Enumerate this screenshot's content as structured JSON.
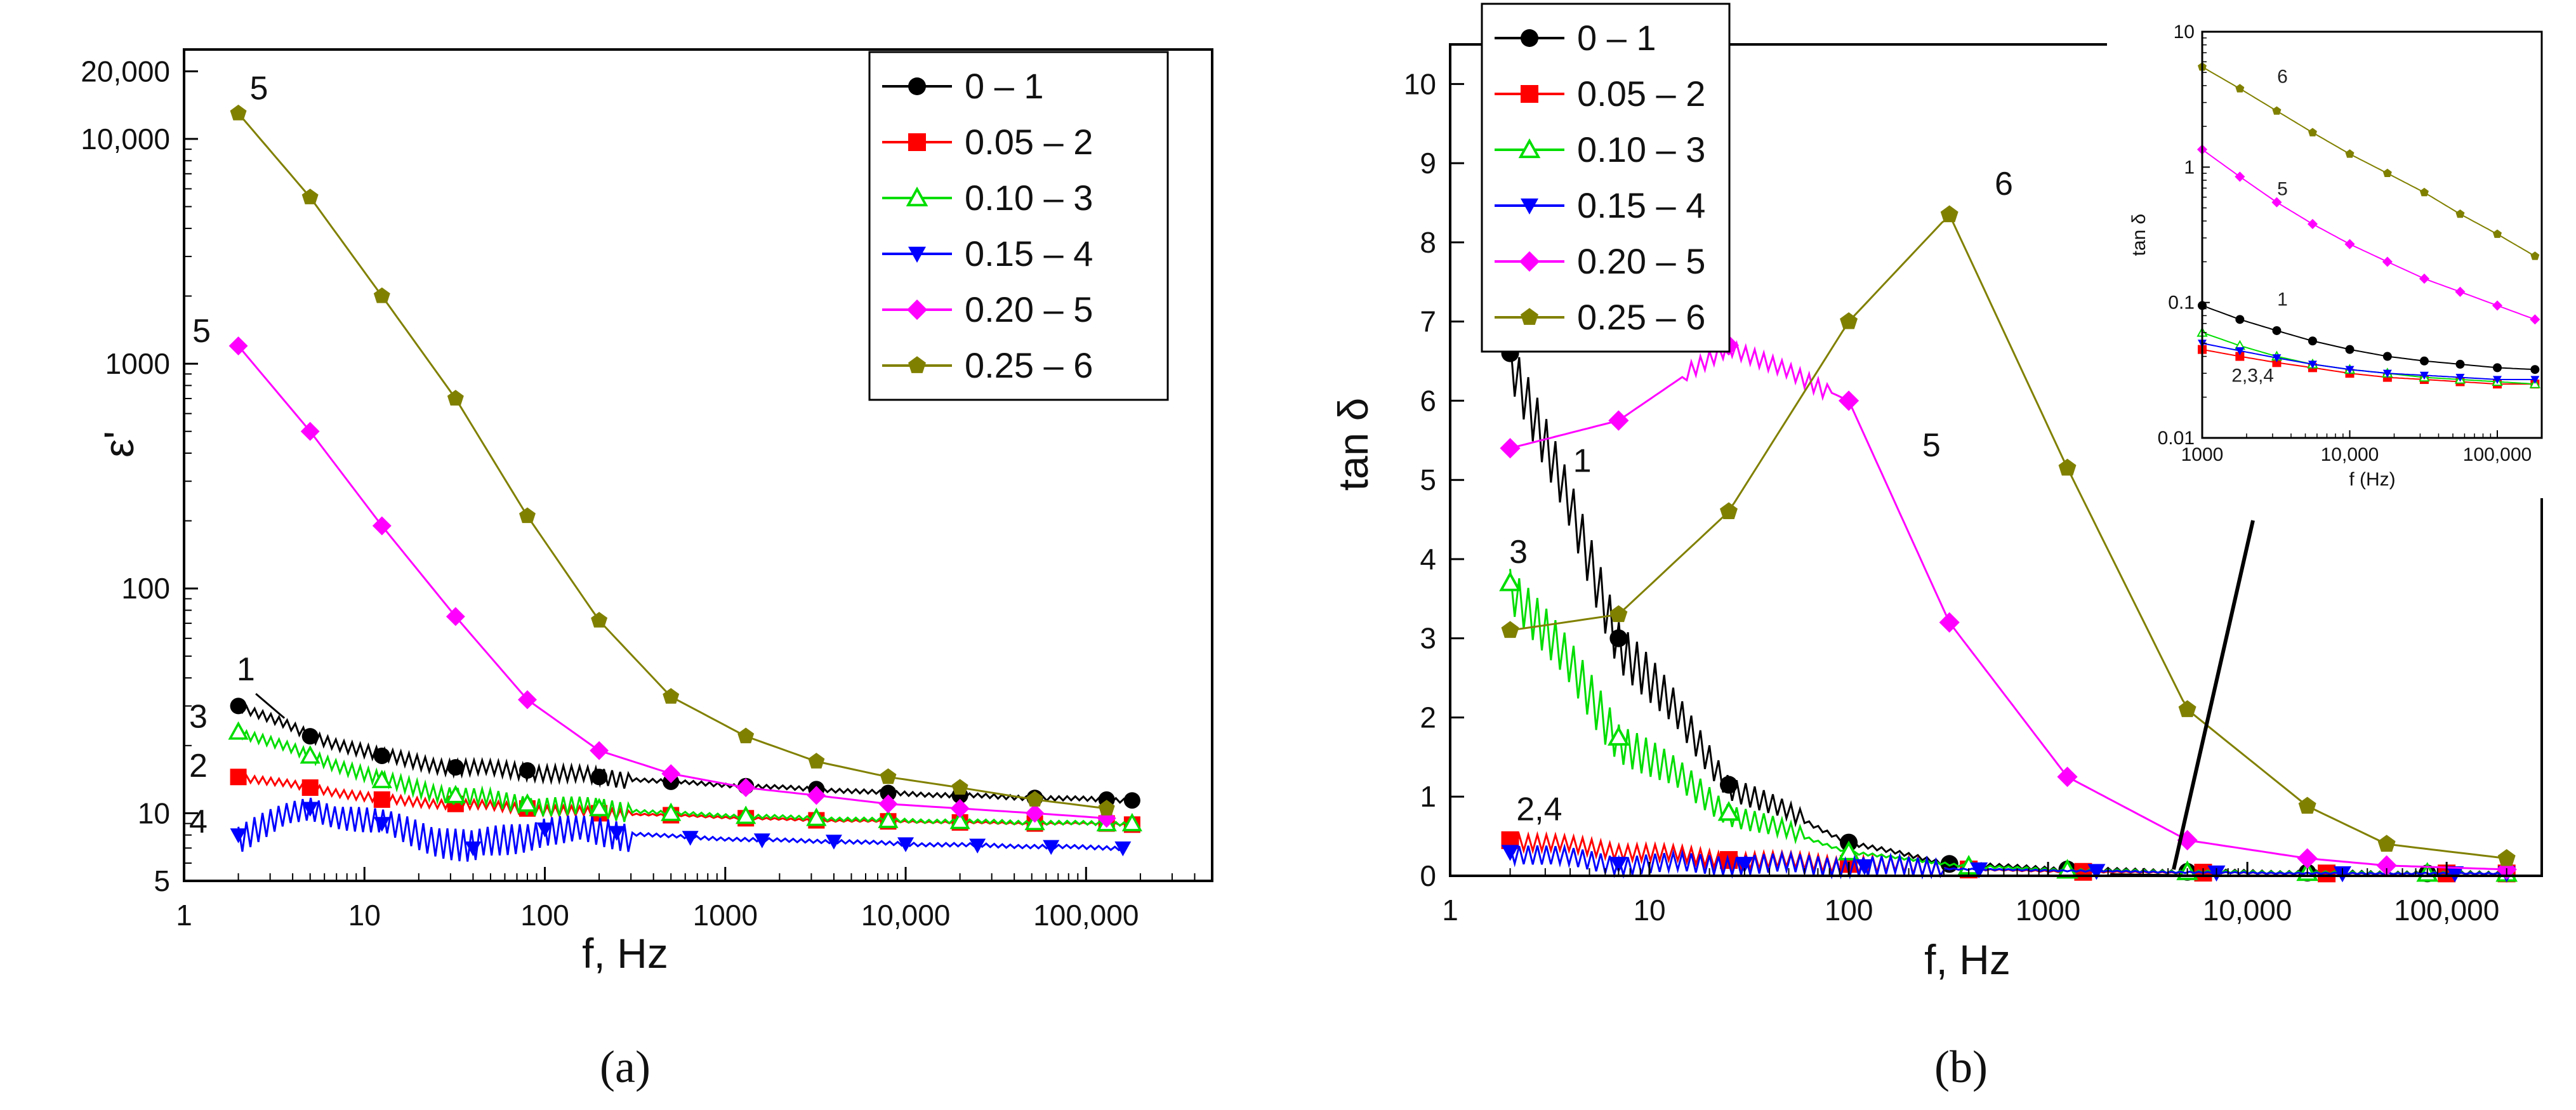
{
  "panels": {
    "a": {
      "caption": "(a)",
      "ylabel": "ε'",
      "xlabel": "f, Hz",
      "xticks": [
        {
          "v": 1,
          "label": "1"
        },
        {
          "v": 10,
          "label": "10"
        },
        {
          "v": 100,
          "label": "100"
        },
        {
          "v": 1000,
          "label": "1000"
        },
        {
          "v": 10000,
          "label": "10,000"
        },
        {
          "v": 100000,
          "label": "100,000"
        }
      ],
      "yticks": [
        {
          "v": 5,
          "label": "5"
        },
        {
          "v": 10,
          "label": "10"
        },
        {
          "v": 100,
          "label": "100"
        },
        {
          "v": 1000,
          "label": "1000"
        },
        {
          "v": 10000,
          "label": "10,000"
        },
        {
          "v": 20000,
          "label": "20,000"
        }
      ],
      "annotations": [
        {
          "text": "5",
          "x": 2.6,
          "y": 15000
        },
        {
          "text": "5",
          "x": 1.25,
          "y": 1250
        },
        {
          "text": "1",
          "x": 2.2,
          "y": 39
        },
        {
          "text": "3",
          "x": 1.2,
          "y": 24
        },
        {
          "text": "2",
          "x": 1.2,
          "y": 14.5
        },
        {
          "text": "4",
          "x": 1.2,
          "y": 8.2
        }
      ]
    },
    "b": {
      "caption": "(b)",
      "ylabel": "tan δ",
      "xlabel": "f, Hz",
      "xticks": [
        {
          "v": 1,
          "label": "1"
        },
        {
          "v": 10,
          "label": "10"
        },
        {
          "v": 100,
          "label": "100"
        },
        {
          "v": 1000,
          "label": "1000"
        },
        {
          "v": 10000,
          "label": "10,000"
        },
        {
          "v": 100000,
          "label": "100,000"
        }
      ],
      "yticks": [
        {
          "v": 0,
          "label": "0"
        },
        {
          "v": 1,
          "label": "1"
        },
        {
          "v": 2,
          "label": "2"
        },
        {
          "v": 3,
          "label": "3"
        },
        {
          "v": 4,
          "label": "4"
        },
        {
          "v": 5,
          "label": "5"
        },
        {
          "v": 6,
          "label": "6"
        },
        {
          "v": 7,
          "label": "7"
        },
        {
          "v": 8,
          "label": "8"
        },
        {
          "v": 9,
          "label": "9"
        },
        {
          "v": 10,
          "label": "10"
        }
      ],
      "annotations": [
        {
          "text": "1",
          "x": 4.6,
          "y": 5.1
        },
        {
          "text": "3",
          "x": 2.2,
          "y": 3.95
        },
        {
          "text": "2,4",
          "x": 2.8,
          "y": 0.7
        },
        {
          "text": "5",
          "x": 260,
          "y": 5.3
        },
        {
          "text": "6",
          "x": 600,
          "y": 8.6
        }
      ],
      "inset": {
        "ylabel": "tan δ",
        "xlabel": "f (Hz)",
        "xticks": [
          {
            "v": 1000,
            "label": "1000"
          },
          {
            "v": 10000,
            "label": "10,000"
          },
          {
            "v": 100000,
            "label": "100,000"
          }
        ],
        "yticks": [
          {
            "v": 0.01,
            "label": "0.01"
          },
          {
            "v": 0.1,
            "label": "0.1"
          },
          {
            "v": 1,
            "label": "1"
          },
          {
            "v": 10,
            "label": "10"
          }
        ],
        "annotations": [
          {
            "text": "6",
            "x": 3500,
            "y": 4.2
          },
          {
            "text": "5",
            "x": 3500,
            "y": 0.62
          },
          {
            "text": "1",
            "x": 3500,
            "y": 0.095
          },
          {
            "text": "2,3,4",
            "x": 2200,
            "y": 0.026
          }
        ]
      }
    }
  },
  "legend": [
    {
      "label": "0 – 1",
      "color": "#000000",
      "marker": "circle"
    },
    {
      "label": "0.05 – 2",
      "color": "#ff0000",
      "marker": "square"
    },
    {
      "label": "0.10 – 3",
      "color": "#00dd00",
      "marker": "triangle-open"
    },
    {
      "label": "0.15 – 4",
      "color": "#0000ff",
      "marker": "triangle-down"
    },
    {
      "label": "0.20 – 5",
      "color": "#ff00ff",
      "marker": "diamond"
    },
    {
      "label": "0.25 – 6",
      "color": "#808000",
      "marker": "pentagon"
    }
  ],
  "chart_data": [
    {
      "type": "line",
      "title": "",
      "xlabel": "f, Hz",
      "ylabel": "ε'",
      "xscale": "log",
      "yscale": "log",
      "xlim": [
        1,
        500000
      ],
      "ylim": [
        5,
        25000
      ],
      "legend": "top-right",
      "grid": false,
      "series": [
        {
          "name": "0 – 1",
          "x": [
            2,
            5,
            12.5,
            32,
            80,
            200,
            500,
            1300,
            3200,
            8000,
            20000,
            52000,
            130000,
            180000
          ],
          "y": [
            30,
            22,
            18,
            16,
            15.5,
            14.5,
            13.8,
            13.2,
            12.8,
            12.3,
            12,
            11.7,
            11.5,
            11.4
          ]
        },
        {
          "name": "0.05 – 2",
          "x": [
            2,
            5,
            12.5,
            32,
            80,
            200,
            500,
            1300,
            3200,
            8000,
            20000,
            52000,
            130000,
            180000
          ],
          "y": [
            14.5,
            13,
            11.5,
            11,
            10.5,
            10,
            9.8,
            9.5,
            9.3,
            9.2,
            9.1,
            9,
            9,
            8.9
          ]
        },
        {
          "name": "0.10 – 3",
          "x": [
            2,
            5,
            12.5,
            32,
            80,
            200,
            500,
            1300,
            3200,
            8000,
            20000,
            52000,
            130000,
            180000
          ],
          "y": [
            23,
            18,
            14,
            12,
            11,
            10.5,
            10,
            9.7,
            9.5,
            9.3,
            9.2,
            9.1,
            9,
            9
          ]
        },
        {
          "name": "0.15 – 4",
          "x": [
            2,
            5,
            12.5,
            40,
            100,
            250,
            640,
            1600,
            4000,
            10000,
            25000,
            64000,
            160000
          ],
          "y": [
            8,
            10.5,
            9,
            7,
            8.5,
            8.2,
            7.8,
            7.6,
            7.5,
            7.3,
            7.2,
            7.1,
            7
          ]
        },
        {
          "name": "0.20 – 5",
          "x": [
            2,
            5,
            12.5,
            32,
            80,
            200,
            500,
            1300,
            3200,
            8000,
            20000,
            52000,
            130000
          ],
          "y": [
            1200,
            500,
            190,
            75,
            32,
            19,
            15,
            13,
            12,
            11,
            10.5,
            10,
            9.5
          ]
        },
        {
          "name": "0.25 – 6",
          "x": [
            2,
            5,
            12.5,
            32,
            80,
            200,
            500,
            1300,
            3200,
            8000,
            20000,
            52000,
            130000
          ],
          "y": [
            13000,
            5500,
            2000,
            700,
            210,
            72,
            33,
            22,
            17,
            14.5,
            13,
            11.5,
            10.5
          ]
        }
      ]
    },
    {
      "type": "line",
      "title": "",
      "xlabel": "f, Hz",
      "ylabel": "tan δ",
      "xscale": "log",
      "yscale": "linear",
      "xlim": [
        1,
        300000
      ],
      "ylim": [
        0,
        10.5
      ],
      "legend": "top-left",
      "grid": false,
      "series": [
        {
          "name": "0 – 1",
          "x": [
            2,
            7,
            25,
            100,
            320,
            1250,
            5000,
            20000,
            80000,
            200000
          ],
          "y": [
            6.6,
            3.0,
            1.15,
            0.42,
            0.15,
            0.08,
            0.05,
            0.04,
            0.03,
            0.03
          ]
        },
        {
          "name": "0.05 – 2",
          "x": [
            2,
            25,
            100,
            400,
            1500,
            6000,
            25000,
            100000,
            200000
          ],
          "y": [
            0.45,
            0.2,
            0.15,
            0.08,
            0.05,
            0.04,
            0.03,
            0.03,
            0.03
          ]
        },
        {
          "name": "0.10 – 3",
          "x": [
            2,
            7,
            25,
            100,
            400,
            1250,
            5000,
            20000,
            80000,
            200000
          ],
          "y": [
            3.7,
            1.75,
            0.8,
            0.3,
            0.12,
            0.07,
            0.05,
            0.04,
            0.03,
            0.03
          ]
        },
        {
          "name": "0.15 – 4",
          "x": [
            2,
            7,
            30,
            120,
            450,
            1750,
            7000,
            30000,
            110000,
            200000
          ],
          "y": [
            0.3,
            0.15,
            0.15,
            0.12,
            0.08,
            0.06,
            0.04,
            0.03,
            0.03,
            0.03
          ]
        },
        {
          "name": "0.20 – 5",
          "x": [
            2,
            7,
            25,
            100,
            320,
            1250,
            5000,
            20000,
            50000,
            200000
          ],
          "y": [
            5.4,
            5.75,
            6.7,
            6.0,
            3.2,
            1.25,
            0.45,
            0.22,
            0.13,
            0.08
          ]
        },
        {
          "name": "0.25 – 6",
          "x": [
            2,
            7,
            25,
            100,
            320,
            1250,
            5000,
            20000,
            50000,
            200000
          ],
          "y": [
            3.1,
            3.3,
            4.6,
            7.0,
            8.35,
            5.15,
            2.1,
            0.88,
            0.4,
            0.22
          ]
        }
      ]
    },
    {
      "type": "line",
      "title": "",
      "xlabel": "f (Hz)",
      "ylabel": "tan δ",
      "xscale": "log",
      "yscale": "log",
      "xlim": [
        1000,
        200000
      ],
      "ylim": [
        0.01,
        10
      ],
      "legend": "none",
      "grid": false,
      "series": [
        {
          "name": "1",
          "x": [
            1000,
            1800,
            3200,
            5600,
            10000,
            18000,
            32000,
            56000,
            100000,
            180000
          ],
          "y": [
            0.095,
            0.075,
            0.062,
            0.052,
            0.045,
            0.04,
            0.037,
            0.035,
            0.033,
            0.032
          ]
        },
        {
          "name": "2",
          "x": [
            1000,
            1800,
            3200,
            5600,
            10000,
            18000,
            32000,
            56000,
            100000,
            180000
          ],
          "y": [
            0.045,
            0.04,
            0.036,
            0.033,
            0.03,
            0.028,
            0.027,
            0.026,
            0.025,
            0.025
          ]
        },
        {
          "name": "3",
          "x": [
            1000,
            1800,
            3200,
            5600,
            10000,
            18000,
            32000,
            56000,
            100000,
            180000
          ],
          "y": [
            0.06,
            0.048,
            0.04,
            0.035,
            0.032,
            0.03,
            0.028,
            0.027,
            0.026,
            0.025
          ]
        },
        {
          "name": "4",
          "x": [
            1000,
            1800,
            3200,
            5600,
            10000,
            18000,
            32000,
            56000,
            100000,
            180000
          ],
          "y": [
            0.05,
            0.044,
            0.039,
            0.035,
            0.032,
            0.03,
            0.029,
            0.028,
            0.027,
            0.027
          ]
        },
        {
          "name": "5",
          "x": [
            1000,
            1800,
            3200,
            5600,
            10000,
            18000,
            32000,
            56000,
            100000,
            180000
          ],
          "y": [
            1.35,
            0.85,
            0.55,
            0.38,
            0.27,
            0.2,
            0.15,
            0.12,
            0.095,
            0.075
          ]
        },
        {
          "name": "6",
          "x": [
            1000,
            1800,
            3200,
            5600,
            10000,
            18000,
            32000,
            56000,
            100000,
            180000
          ],
          "y": [
            5.5,
            3.8,
            2.6,
            1.8,
            1.25,
            0.9,
            0.65,
            0.45,
            0.32,
            0.22
          ]
        }
      ]
    }
  ]
}
